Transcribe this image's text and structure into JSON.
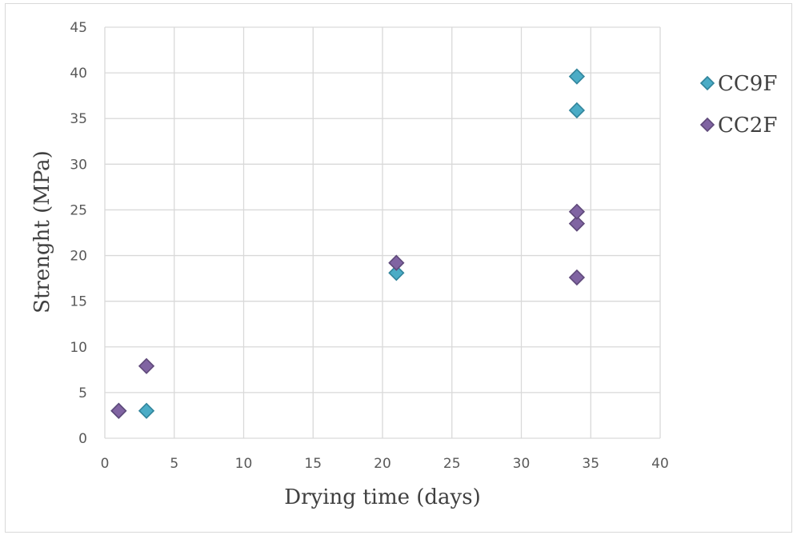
{
  "chart_data": {
    "type": "scatter",
    "title": "",
    "xlabel": "Drying time (days)",
    "ylabel": "Strenght (MPa)",
    "xlim": [
      0,
      40
    ],
    "ylim": [
      0,
      45
    ],
    "x_ticks": [
      "0",
      "5",
      "10",
      "15",
      "20",
      "25",
      "30",
      "35",
      "40"
    ],
    "y_ticks": [
      "0",
      "5",
      "10",
      "15",
      "20",
      "25",
      "30",
      "35",
      "40",
      "45"
    ],
    "grid": true,
    "legend_position": "right",
    "series": [
      {
        "name": "CC9F",
        "color": "#4bacc6",
        "stroke": "#31849b",
        "marker": "diamond",
        "points": [
          {
            "x": 1,
            "y": 3.0
          },
          {
            "x": 3,
            "y": 3.0
          },
          {
            "x": 21,
            "y": 18.1
          },
          {
            "x": 34,
            "y": 35.9
          },
          {
            "x": 34,
            "y": 39.6
          }
        ]
      },
      {
        "name": "CC2F",
        "color": "#8064a2",
        "stroke": "#5f497a",
        "marker": "diamond",
        "points": [
          {
            "x": 1,
            "y": 3.0
          },
          {
            "x": 3,
            "y": 7.9
          },
          {
            "x": 21,
            "y": 19.2
          },
          {
            "x": 34,
            "y": 17.6
          },
          {
            "x": 34,
            "y": 23.5
          },
          {
            "x": 34,
            "y": 24.8
          }
        ]
      }
    ]
  }
}
